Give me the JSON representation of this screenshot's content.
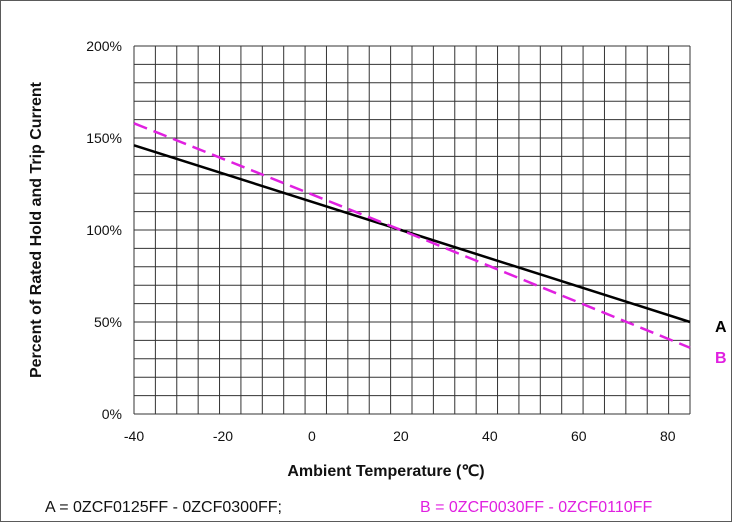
{
  "chart_data": {
    "type": "line",
    "title": "",
    "xlabel": "Ambient Temperature (℃)",
    "ylabel": "Percent of Rated Hold  and Trip Current",
    "xlim": [
      -40,
      85
    ],
    "ylim": [
      0,
      200
    ],
    "x_ticks": [
      "-40",
      "-20",
      "0",
      "20",
      "40",
      "60",
      "80"
    ],
    "y_ticks": [
      "0%",
      "50%",
      "100%",
      "150%",
      "200%"
    ],
    "grid": true,
    "series": [
      {
        "name": "A",
        "color": "#000000",
        "style": "solid",
        "x": [
          -40,
          20,
          85
        ],
        "values": [
          146,
          100,
          50
        ]
      },
      {
        "name": "B",
        "color": "#e020e0",
        "style": "dashed",
        "x": [
          -40,
          20,
          85
        ],
        "values": [
          158,
          100,
          36
        ]
      }
    ],
    "legend": {
      "a_text": "A = 0ZCF0125FF -  0ZCF0300FF;",
      "b_text": "B = 0ZCF0030FF - 0ZCF0110FF"
    }
  }
}
